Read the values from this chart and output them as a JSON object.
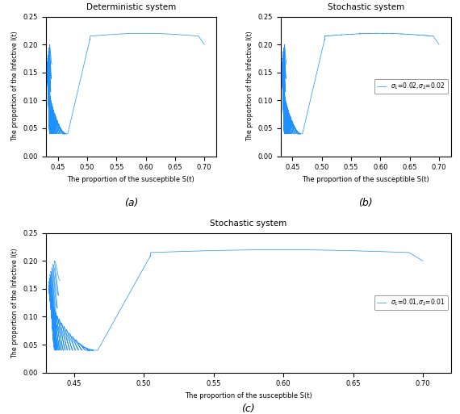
{
  "title_a": "Deterministic system",
  "title_b": "Stochastic system",
  "title_c": "Stochastic system",
  "xlabel": "The proportion of the susceptible S(t)",
  "ylabel": "The proportion of the Infective I(t)",
  "xlim": [
    0.43,
    0.72
  ],
  "ylim": [
    0,
    0.25
  ],
  "xticks": [
    0.45,
    0.5,
    0.55,
    0.6,
    0.65,
    0.7
  ],
  "yticks": [
    0,
    0.05,
    0.1,
    0.15,
    0.2,
    0.25
  ],
  "line_color": "#1E90FF",
  "label_a": "(a)",
  "label_b": "(b)",
  "label_c": "(c)",
  "sigma1_b": 0.02,
  "sigma2_b": 0.02,
  "sigma1_c": 0.01,
  "sigma2_c": 0.01
}
